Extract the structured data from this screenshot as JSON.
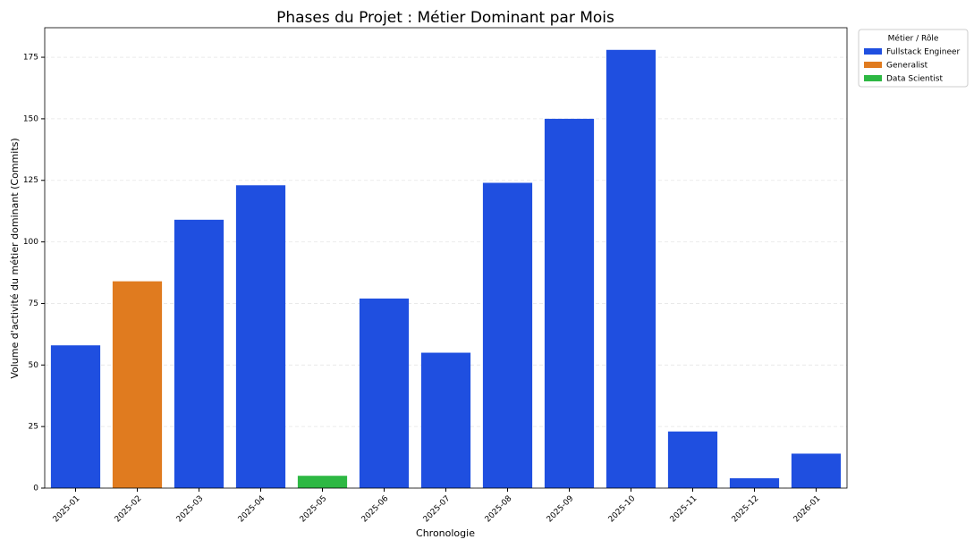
{
  "chart_data": {
    "type": "bar",
    "title": "Phases du Projet : Métier Dominant par Mois",
    "x_label": "Chronologie",
    "y_label": "Volume d'activité du métier dominant (Commits)",
    "legend_title": "Métier / Rôle",
    "legend_position": "upper right outside",
    "categories": [
      "2025-01",
      "2025-02",
      "2025-03",
      "2025-04",
      "2025-05",
      "2025-06",
      "2025-07",
      "2025-08",
      "2025-09",
      "2025-10",
      "2025-11",
      "2025-12",
      "2026-01"
    ],
    "series": [
      {
        "name": "Fullstack Engineer",
        "color": "#1f4fe0",
        "values": [
          58,
          null,
          109,
          123,
          null,
          77,
          55,
          124,
          150,
          178,
          23,
          4,
          14
        ]
      },
      {
        "name": "Generalist",
        "color": "#e07b1f",
        "values": [
          null,
          84,
          null,
          null,
          null,
          null,
          null,
          null,
          null,
          null,
          null,
          null,
          null
        ]
      },
      {
        "name": "Data Scientist",
        "color": "#2db843",
        "values": [
          null,
          null,
          null,
          null,
          5,
          null,
          null,
          null,
          null,
          null,
          null,
          null,
          null
        ]
      }
    ],
    "ylim": [
      0,
      187
    ],
    "yticks": [
      0,
      25,
      50,
      75,
      100,
      125,
      150,
      175
    ],
    "grid": true
  }
}
